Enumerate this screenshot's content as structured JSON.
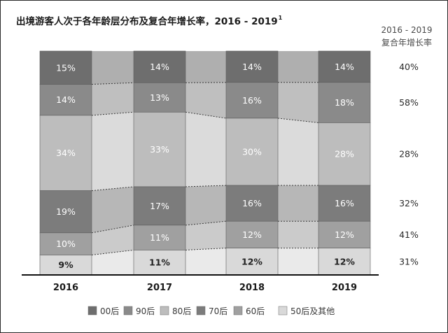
{
  "chart_data": {
    "type": "bar",
    "stacked": true,
    "normalized_percent": true,
    "title": "出境游客人次于各年龄层分布及复合年增长率，2016 - 2019",
    "title_sup": "1",
    "categories": [
      "2016",
      "2017",
      "2018",
      "2019"
    ],
    "series": [
      {
        "name": "00后",
        "values": [
          15,
          14,
          14,
          14
        ],
        "labels": [
          "15%",
          "14%",
          "14%",
          "14%"
        ],
        "color": "#6e6e6e"
      },
      {
        "name": "90后",
        "values": [
          14,
          13,
          16,
          18
        ],
        "labels": [
          "14%",
          "13%",
          "16%",
          "18%"
        ],
        "color": "#8a8a8a"
      },
      {
        "name": "80后",
        "values": [
          34,
          33,
          30,
          28
        ],
        "labels": [
          "34%",
          "33%",
          "30%",
          "28%"
        ],
        "color": "#bdbdbd"
      },
      {
        "name": "70后",
        "values": [
          19,
          17,
          16,
          16
        ],
        "labels": [
          "19%",
          "17%",
          "16%",
          "16%"
        ],
        "color": "#7c7c7c"
      },
      {
        "name": "60后",
        "values": [
          10,
          11,
          12,
          12
        ],
        "labels": [
          "10%",
          "11%",
          "12%",
          "12%"
        ],
        "color": "#a0a0a0"
      },
      {
        "name": "50后及其他",
        "values": [
          9,
          11,
          12,
          12
        ],
        "labels": [
          "9%",
          "11%",
          "12%",
          "12%"
        ],
        "color": "#d9d9d9"
      }
    ],
    "cagr": {
      "header_line1": "2016 - 2019",
      "header_line2": "复合年增长率",
      "values": [
        "40%",
        "58%",
        "28%",
        "32%",
        "41%",
        "31%"
      ]
    },
    "legend_position": "bottom"
  }
}
